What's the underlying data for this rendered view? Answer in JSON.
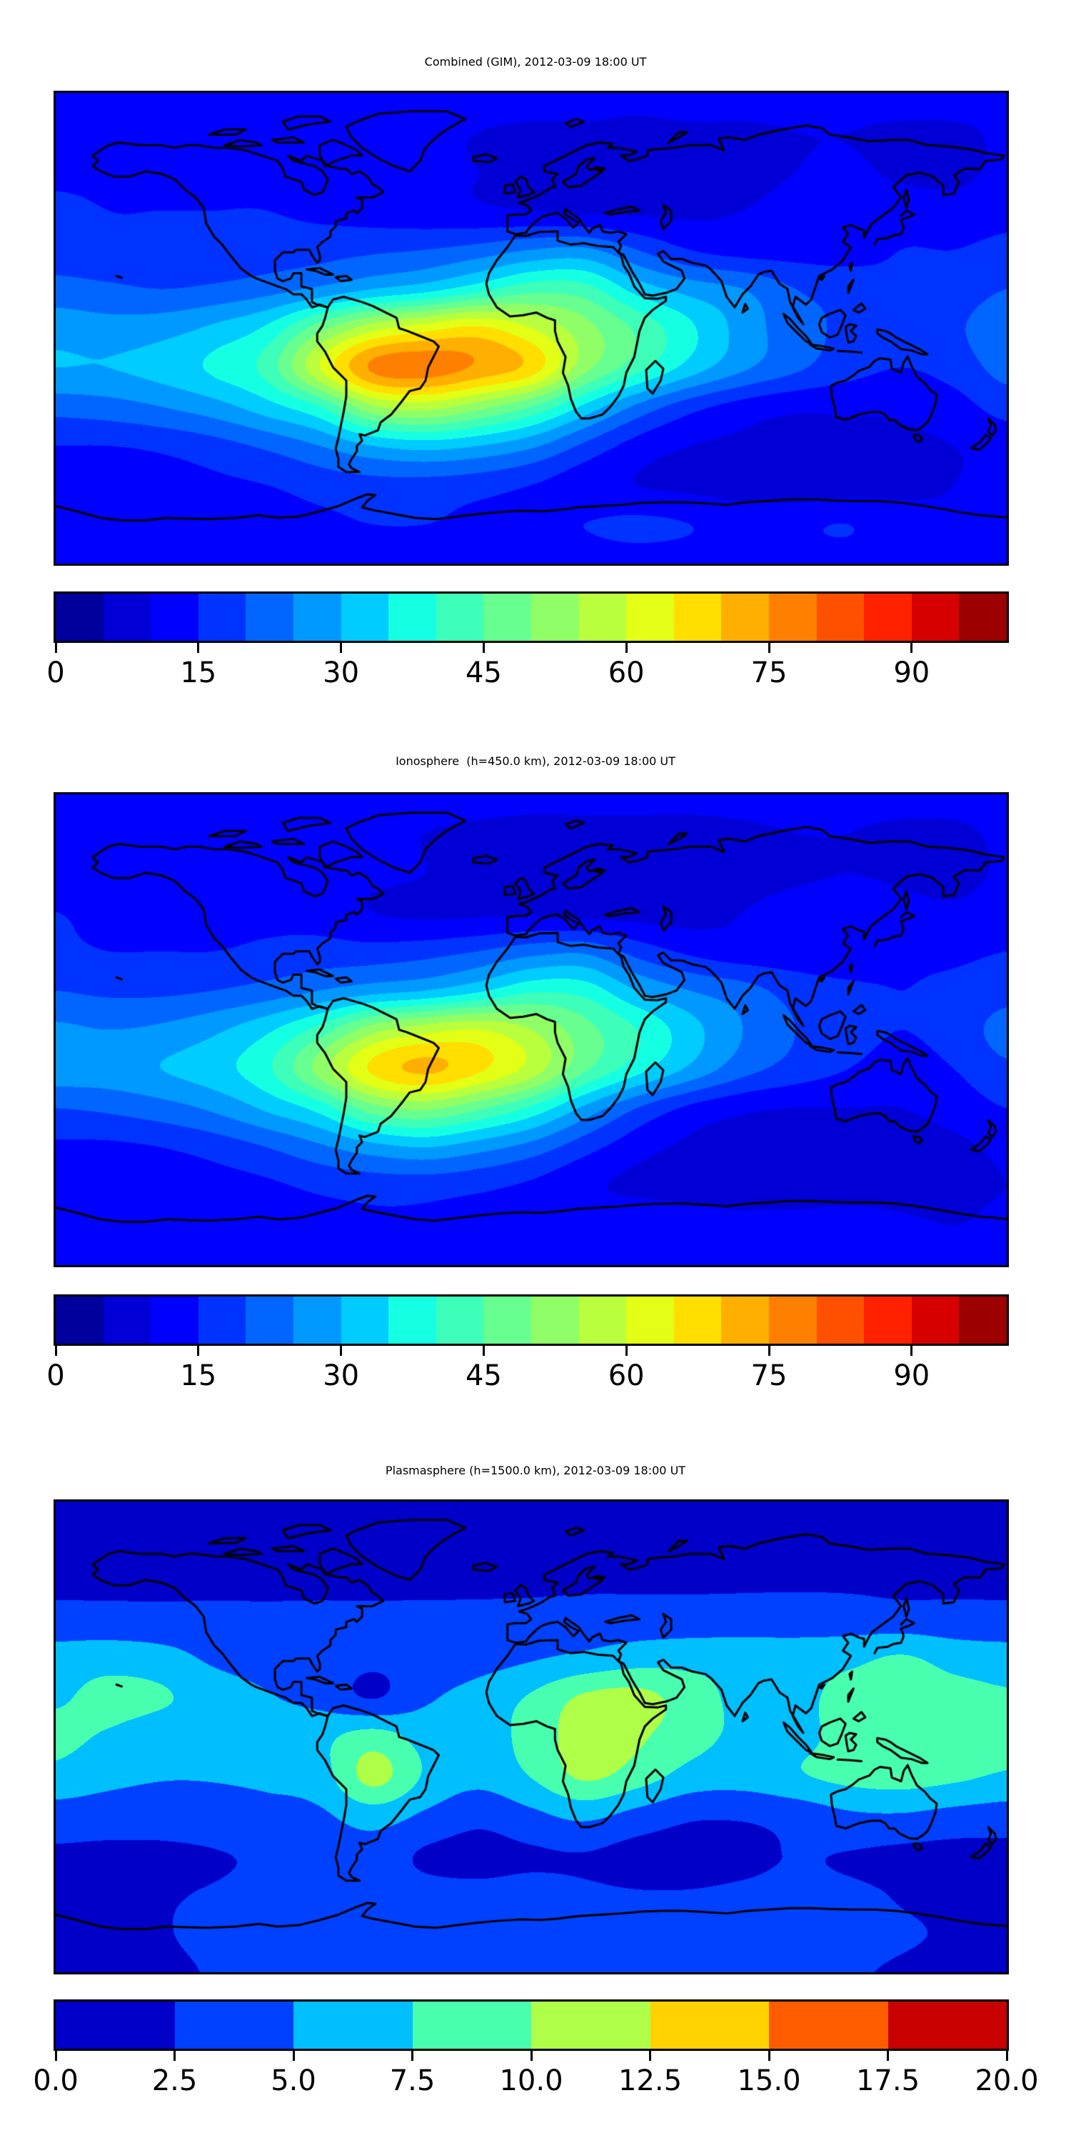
{
  "figure": {
    "background_color": "#ffffff",
    "text_color": "#000000",
    "coastline_color": "#000000",
    "colormap": "jet"
  },
  "panels": [
    {
      "title": "Combined (GIM), 2012-03-09 18:00 UT",
      "colorbar": {
        "vmin": 0,
        "vmax": 100,
        "segment_step": 5,
        "n_segments": 20,
        "tick_values": [
          0,
          15,
          30,
          45,
          60,
          75,
          90
        ],
        "tick_labels": [
          "0",
          "15",
          "30",
          "45",
          "60",
          "75",
          "90"
        ]
      }
    },
    {
      "title": "Ionosphere  (h=450.0 km), 2012-03-09 18:00 UT",
      "colorbar": {
        "vmin": 0,
        "vmax": 100,
        "segment_step": 5,
        "n_segments": 20,
        "tick_values": [
          0,
          15,
          30,
          45,
          60,
          75,
          90
        ],
        "tick_labels": [
          "0",
          "15",
          "30",
          "45",
          "60",
          "75",
          "90"
        ]
      }
    },
    {
      "title": "Plasmasphere (h=1500.0 km), 2012-03-09 18:00 UT",
      "colorbar": {
        "vmin": 0,
        "vmax": 20,
        "segment_step": 2.5,
        "n_segments": 8,
        "tick_values": [
          0,
          2.5,
          5,
          7.5,
          10,
          12.5,
          15,
          17.5,
          20
        ],
        "tick_labels": [
          "0.0",
          "2.5",
          "5.0",
          "7.5",
          "10.0",
          "12.5",
          "15.0",
          "17.5",
          "20.0"
        ]
      }
    }
  ],
  "chart_data": [
    {
      "type": "heatmap",
      "subtype": "filled-contour-world-map",
      "title": "Combined (GIM), 2012-03-09 18:00 UT",
      "colormap": "jet",
      "projection": "equirectangular",
      "lon_range": [
        -180,
        180
      ],
      "lat_range": [
        -90,
        90
      ],
      "contour_levels": {
        "min": 0,
        "max": 100,
        "step": 5
      },
      "legend_position": "bottom",
      "grid": false,
      "lon": [
        -180,
        -160,
        -140,
        -120,
        -100,
        -80,
        -60,
        -40,
        -20,
        0,
        20,
        40,
        60,
        80,
        100,
        120,
        140,
        160,
        180
      ],
      "lat": [
        90,
        75,
        60,
        45,
        30,
        15,
        0,
        -15,
        -30,
        -45,
        -60,
        -75,
        -90
      ],
      "values": [
        [
          13,
          13,
          13,
          13,
          13,
          13,
          13,
          13,
          13,
          13,
          13,
          13,
          13,
          13,
          13,
          13,
          13,
          13,
          13
        ],
        [
          13,
          13,
          13,
          13,
          13,
          13,
          12,
          11,
          10,
          9,
          9,
          8,
          9,
          9,
          10,
          10,
          9,
          9,
          11
        ],
        [
          14,
          14,
          14,
          14,
          14,
          13,
          12,
          11,
          10,
          8,
          7,
          7,
          7,
          8,
          10,
          11,
          9,
          8,
          12
        ],
        [
          16,
          15,
          15,
          15,
          15,
          14,
          13,
          12,
          11,
          10,
          9,
          9,
          9,
          10,
          12,
          13,
          13,
          13,
          14
        ],
        [
          17,
          16,
          16,
          16,
          17,
          18,
          19,
          20,
          22,
          25,
          26,
          20,
          15,
          13,
          13,
          13,
          15,
          15,
          16
        ],
        [
          22,
          21,
          20,
          21,
          23,
          26,
          30,
          33,
          38,
          43,
          42,
          33,
          28,
          25,
          20,
          18,
          16,
          17,
          20
        ],
        [
          28,
          27,
          28,
          31,
          36,
          48,
          58,
          63,
          66,
          60,
          52,
          44,
          36,
          28,
          22,
          19,
          17,
          19,
          24
        ],
        [
          30,
          30,
          32,
          36,
          42,
          60,
          76,
          78,
          74,
          68,
          52,
          42,
          33,
          26,
          21,
          17,
          15,
          17,
          22
        ],
        [
          22,
          23,
          25,
          28,
          33,
          40,
          54,
          57,
          52,
          45,
          34,
          24,
          17,
          13,
          11,
          11,
          11,
          13,
          17
        ],
        [
          15,
          15,
          16,
          18,
          21,
          25,
          30,
          32,
          30,
          26,
          19,
          13,
          10,
          9,
          8,
          8,
          9,
          10,
          12
        ],
        [
          12,
          12,
          13,
          14,
          15,
          17,
          18,
          18,
          17,
          15,
          12,
          10,
          9,
          8,
          7,
          8,
          9,
          10,
          11
        ],
        [
          12,
          12,
          12,
          13,
          13,
          14,
          15,
          15,
          14,
          14,
          15,
          16,
          15,
          13,
          14,
          15,
          12,
          11,
          12
        ],
        [
          13,
          13,
          13,
          13,
          13,
          13,
          13,
          13,
          13,
          13,
          13,
          13,
          13,
          13,
          13,
          13,
          13,
          13,
          13
        ]
      ]
    },
    {
      "type": "heatmap",
      "subtype": "filled-contour-world-map",
      "title": "Ionosphere  (h=450.0 km), 2012-03-09 18:00 UT",
      "colormap": "jet",
      "projection": "equirectangular",
      "lon_range": [
        -180,
        180
      ],
      "lat_range": [
        -90,
        90
      ],
      "contour_levels": {
        "min": 0,
        "max": 100,
        "step": 5
      },
      "legend_position": "bottom",
      "grid": false,
      "lon": [
        -180,
        -160,
        -140,
        -120,
        -100,
        -80,
        -60,
        -40,
        -20,
        0,
        20,
        40,
        60,
        80,
        100,
        120,
        140,
        160,
        180
      ],
      "lat": [
        90,
        75,
        60,
        45,
        30,
        15,
        0,
        -15,
        -30,
        -45,
        -60,
        -75,
        -90
      ],
      "values": [
        [
          12,
          12,
          12,
          12,
          12,
          12,
          12,
          12,
          12,
          12,
          12,
          12,
          12,
          12,
          12,
          12,
          12,
          12,
          12
        ],
        [
          12,
          12,
          12,
          12,
          12,
          12,
          11,
          10,
          9,
          8,
          8,
          8,
          8,
          9,
          10,
          10,
          9,
          9,
          11
        ],
        [
          13,
          13,
          13,
          13,
          13,
          12,
          11,
          10,
          8,
          7,
          6,
          6,
          7,
          8,
          9,
          10,
          9,
          8,
          11
        ],
        [
          15,
          14,
          14,
          14,
          14,
          13,
          10,
          9,
          9,
          9,
          8,
          8,
          8,
          10,
          12,
          13,
          12,
          11,
          13
        ],
        [
          16,
          15,
          15,
          15,
          16,
          17,
          17,
          18,
          20,
          23,
          24,
          18,
          14,
          12,
          12,
          12,
          14,
          14,
          15
        ],
        [
          20,
          19,
          19,
          20,
          22,
          25,
          28,
          30,
          34,
          39,
          38,
          30,
          25,
          22,
          18,
          16,
          15,
          16,
          18
        ],
        [
          26,
          25,
          26,
          29,
          34,
          42,
          53,
          58,
          60,
          55,
          47,
          40,
          32,
          25,
          20,
          17,
          15,
          17,
          22
        ],
        [
          28,
          28,
          30,
          33,
          39,
          52,
          66,
          71,
          66,
          58,
          46,
          37,
          29,
          22,
          18,
          15,
          13,
          15,
          19
        ],
        [
          20,
          21,
          23,
          26,
          31,
          37,
          48,
          51,
          46,
          39,
          29,
          20,
          14,
          11,
          10,
          10,
          10,
          12,
          15
        ],
        [
          14,
          14,
          15,
          17,
          20,
          24,
          28,
          30,
          27,
          23,
          17,
          12,
          9,
          8,
          8,
          8,
          8,
          9,
          11
        ],
        [
          11,
          11,
          12,
          13,
          14,
          16,
          17,
          17,
          16,
          14,
          11,
          9,
          8,
          7,
          7,
          7,
          8,
          9,
          10
        ],
        [
          11,
          11,
          11,
          12,
          12,
          13,
          14,
          14,
          13,
          13,
          13,
          14,
          13,
          12,
          12,
          13,
          11,
          10,
          11
        ],
        [
          12,
          12,
          12,
          12,
          12,
          12,
          12,
          12,
          12,
          12,
          12,
          12,
          12,
          12,
          12,
          12,
          12,
          12,
          12
        ]
      ]
    },
    {
      "type": "heatmap",
      "subtype": "filled-contour-world-map",
      "title": "Plasmasphere (h=1500.0 km), 2012-03-09 18:00 UT",
      "colormap": "jet",
      "projection": "equirectangular",
      "lon_range": [
        -180,
        180
      ],
      "lat_range": [
        -90,
        90
      ],
      "contour_levels": {
        "min": 0,
        "max": 20,
        "step": 2.5
      },
      "legend_position": "bottom",
      "grid": false,
      "lon": [
        -180,
        -160,
        -140,
        -120,
        -100,
        -80,
        -60,
        -40,
        -20,
        0,
        20,
        40,
        60,
        80,
        100,
        120,
        140,
        160,
        180
      ],
      "lat": [
        90,
        75,
        60,
        45,
        30,
        15,
        0,
        -15,
        -30,
        -45,
        -60,
        -75,
        -90
      ],
      "values": [
        [
          1.8,
          1.8,
          1.8,
          1.8,
          1.8,
          1.8,
          1.8,
          1.8,
          1.8,
          1.8,
          1.8,
          1.8,
          1.8,
          1.8,
          1.8,
          1.8,
          1.8,
          1.8,
          1.8
        ],
        [
          1.8,
          1.8,
          1.8,
          1.8,
          1.8,
          1.8,
          1.8,
          1.8,
          1.8,
          1.8,
          1.8,
          1.8,
          1.8,
          1.8,
          1.8,
          1.8,
          1.8,
          1.8,
          1.8
        ],
        [
          2.0,
          2.0,
          2.0,
          2.0,
          2.0,
          2.0,
          2.0,
          2.0,
          2.0,
          2.0,
          2.1,
          2.1,
          2.1,
          2.1,
          2.1,
          2.1,
          2.0,
          2.0,
          2.0
        ],
        [
          3.3,
          3.3,
          3.2,
          3.1,
          3.0,
          3.0,
          2.9,
          3.0,
          3.1,
          3.3,
          3.5,
          3.6,
          3.6,
          3.7,
          3.8,
          3.7,
          3.5,
          3.4,
          3.3
        ],
        [
          6.2,
          6.5,
          6.0,
          4.6,
          4.0,
          3.6,
          2.9,
          3.4,
          4.0,
          4.8,
          5.6,
          6.4,
          6.6,
          6.4,
          6.2,
          6.8,
          7.8,
          6.6,
          6.2
        ],
        [
          7.2,
          8.2,
          7.8,
          6.2,
          5.2,
          4.2,
          2.4,
          4.6,
          6.0,
          7.8,
          10.4,
          10.8,
          8.8,
          6.8,
          6.6,
          8.6,
          8.8,
          8.4,
          7.8
        ],
        [
          8.0,
          7.2,
          6.0,
          5.6,
          6.0,
          6.8,
          8.6,
          6.6,
          6.4,
          8.4,
          11.2,
          10.4,
          8.4,
          7.0,
          6.8,
          8.4,
          9.2,
          8.8,
          8.2
        ],
        [
          6.8,
          5.8,
          5.2,
          5.2,
          5.6,
          6.4,
          10.8,
          7.2,
          5.8,
          7.6,
          10.4,
          8.8,
          6.6,
          6.2,
          7.2,
          8.2,
          8.6,
          8.0,
          7.2
        ],
        [
          3.8,
          3.6,
          3.4,
          3.6,
          4.0,
          4.6,
          6.2,
          4.6,
          3.2,
          4.4,
          5.6,
          4.2,
          2.9,
          2.8,
          3.4,
          4.6,
          4.8,
          4.2,
          3.8
        ],
        [
          2.2,
          2.1,
          2.2,
          2.4,
          2.8,
          3.4,
          3.8,
          2.2,
          1.8,
          2.2,
          2.4,
          1.7,
          1.6,
          2.0,
          2.6,
          2.4,
          2.0,
          1.8,
          1.9
        ],
        [
          2.0,
          2.2,
          2.4,
          2.6,
          3.0,
          3.4,
          3.6,
          3.2,
          3.0,
          3.2,
          2.8,
          2.6,
          2.6,
          2.8,
          3.0,
          2.8,
          2.4,
          2.2,
          2.0
        ],
        [
          1.9,
          2.0,
          2.4,
          2.8,
          3.0,
          3.2,
          3.4,
          3.4,
          3.2,
          3.2,
          3.0,
          3.0,
          3.0,
          3.0,
          3.0,
          2.8,
          2.6,
          2.4,
          2.2
        ],
        [
          1.9,
          2.0,
          2.2,
          2.6,
          2.8,
          2.8,
          2.8,
          2.8,
          2.8,
          2.8,
          2.8,
          2.8,
          2.8,
          2.8,
          2.8,
          2.6,
          2.4,
          2.2,
          2.0
        ]
      ]
    }
  ]
}
